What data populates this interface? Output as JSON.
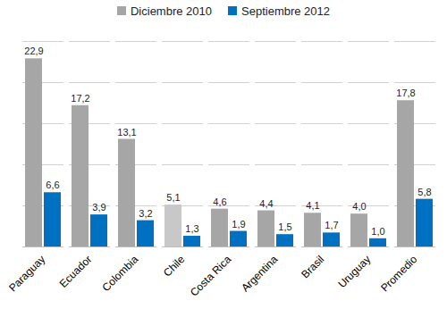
{
  "chart_data": {
    "type": "bar",
    "categories": [
      "Paraguay",
      "Ecuador",
      "Colombia",
      "Chile",
      "Costa Rica",
      "Argentina",
      "Brasil",
      "Uruguay",
      "Promedio"
    ],
    "series": [
      {
        "name": "Diciembre 2010",
        "color": "#a6a6a6",
        "colors": [
          "#a6a6a6",
          "#a6a6a6",
          "#a6a6a6",
          "#c8c8c8",
          "#a6a6a6",
          "#a6a6a6",
          "#a6a6a6",
          "#a6a6a6",
          "#a6a6a6"
        ],
        "values": [
          22.9,
          17.2,
          13.1,
          5.1,
          4.6,
          4.4,
          4.1,
          4.0,
          17.8
        ],
        "value_labels": [
          "22,9",
          "17,2",
          "13,1",
          "5,1",
          "4,6",
          "4,4",
          "4,1",
          "4,0",
          "17,8"
        ]
      },
      {
        "name": "Septiembre 2012",
        "color": "#0070c0",
        "values": [
          6.6,
          3.9,
          3.2,
          1.3,
          1.9,
          1.5,
          1.7,
          1.0,
          5.8
        ],
        "value_labels": [
          "6,6",
          "3,9",
          "3,2",
          "1,3",
          "1,9",
          "1,5",
          "1,7",
          "1,0",
          "5,8"
        ]
      }
    ],
    "ylim": [
      0,
      25
    ],
    "yticks": [
      0,
      5,
      10,
      15,
      20,
      25
    ],
    "grid": true,
    "legend": "top",
    "data_labels": true,
    "tick_labels": "x"
  }
}
